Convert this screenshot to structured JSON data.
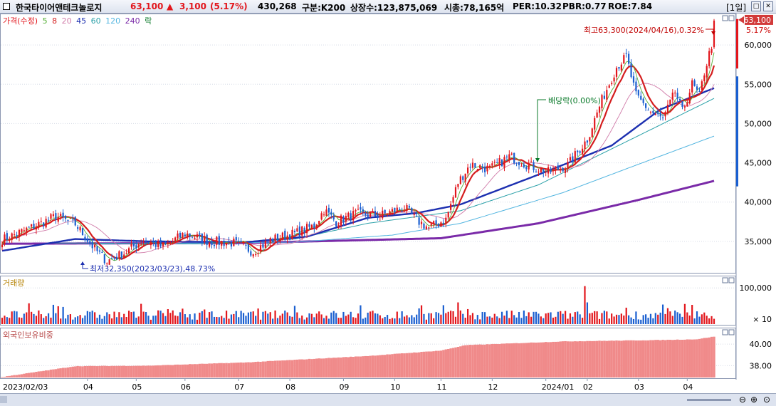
{
  "header": {
    "stock_name": "한국타이어앤테크놀로지",
    "price": "63,100",
    "change_arrow": "▲",
    "change": "3,100",
    "change_pct": "(5.17%)",
    "volume": "430,268",
    "market": "구분:K200",
    "shares": "상장수:123,875,069",
    "market_cap": "시총:78,165억",
    "per": "PER:10.32",
    "pbr": "PBR:0.77",
    "roe": "ROE:7.84",
    "period": "[1일]"
  },
  "legend": {
    "price_label": "가격(수정)",
    "ma5": "5",
    "ma8": "8",
    "ma20": "20",
    "ma45": "45",
    "ma60": "60",
    "ma120": "120",
    "ma240": "240",
    "ex_label": "락"
  },
  "colors": {
    "up": "#e2161c",
    "down": "#1a5fd0",
    "ma5": "#55b036",
    "ma8": "#d41e1e",
    "ma20": "#d07aa8",
    "ma45": "#1c2fb0",
    "ma60": "#2aa0a8",
    "ma120": "#52b5e0",
    "ma240": "#7a2aa8",
    "foreign": "#f08a8a"
  },
  "annotations": {
    "high": "최고63,300(2024/04/16),0.32%",
    "low": "최저32,350(2023/03/23),48.73%",
    "dividend": "배당락(0.00%)",
    "last_price": "63,100",
    "last_pct": "5.17%"
  },
  "volume_panel": {
    "label": "거래량",
    "ticks": [
      "100,000",
      "× 10"
    ]
  },
  "foreign_panel": {
    "label": "외국인보유비중",
    "ticks": [
      "40.00",
      "38.00"
    ]
  },
  "chart_data": {
    "type": "candlestick",
    "price_ylim": [
      31000,
      64000
    ],
    "price_ticks": [
      "60,000",
      "55,000",
      "50,000",
      "45,000",
      "40,000",
      "35,000"
    ],
    "x_labels": [
      "2023/02/03",
      "04",
      "05",
      "06",
      "07",
      "08",
      "09",
      "10",
      "11",
      "12",
      "2024/01",
      "02",
      "03",
      "04"
    ],
    "price_path": [
      [
        0,
        35200
      ],
      [
        10,
        36500
      ],
      [
        22,
        38200
      ],
      [
        30,
        37200
      ],
      [
        38,
        34000
      ],
      [
        43,
        32500
      ],
      [
        50,
        33500
      ],
      [
        58,
        35200
      ],
      [
        66,
        34300
      ],
      [
        75,
        36000
      ],
      [
        85,
        35000
      ],
      [
        95,
        34800
      ],
      [
        103,
        33700
      ],
      [
        110,
        35200
      ],
      [
        120,
        36000
      ],
      [
        128,
        37000
      ],
      [
        132,
        39000
      ],
      [
        137,
        37500
      ],
      [
        145,
        38500
      ],
      [
        155,
        38300
      ],
      [
        165,
        39300
      ],
      [
        170,
        37700
      ],
      [
        175,
        36700
      ],
      [
        182,
        37800
      ],
      [
        187,
        42500
      ],
      [
        192,
        44800
      ],
      [
        200,
        44200
      ],
      [
        208,
        45800
      ],
      [
        216,
        44700
      ],
      [
        224,
        43800
      ],
      [
        232,
        44700
      ],
      [
        240,
        48000
      ],
      [
        246,
        53000
      ],
      [
        252,
        57200
      ],
      [
        256,
        58500
      ],
      [
        260,
        53500
      ],
      [
        266,
        51500
      ],
      [
        271,
        50500
      ],
      [
        276,
        54000
      ],
      [
        279,
        51500
      ],
      [
        283,
        55000
      ],
      [
        286,
        53500
      ],
      [
        288,
        56500
      ],
      [
        291,
        60000
      ],
      [
        292,
        63100
      ]
    ],
    "ma_series": {
      "ma45": [
        [
          0,
          33800
        ],
        [
          30,
          35300
        ],
        [
          60,
          35000
        ],
        [
          100,
          34900
        ],
        [
          125,
          35600
        ],
        [
          150,
          38000
        ],
        [
          170,
          38600
        ],
        [
          188,
          39700
        ],
        [
          220,
          43500
        ],
        [
          250,
          47200
        ],
        [
          270,
          51800
        ],
        [
          292,
          54500
        ]
      ],
      "ma60": [
        [
          20,
          34800
        ],
        [
          80,
          34700
        ],
        [
          120,
          35300
        ],
        [
          150,
          37300
        ],
        [
          188,
          38900
        ],
        [
          220,
          42200
        ],
        [
          260,
          48300
        ],
        [
          292,
          53200
        ]
      ],
      "ma120": [
        [
          40,
          34700
        ],
        [
          120,
          34900
        ],
        [
          160,
          35800
        ],
        [
          188,
          37300
        ],
        [
          230,
          41200
        ],
        [
          260,
          44700
        ],
        [
          292,
          48400
        ]
      ],
      "ma240": [
        [
          0,
          34700
        ],
        [
          100,
          34800
        ],
        [
          180,
          35400
        ],
        [
          220,
          37300
        ],
        [
          260,
          40200
        ],
        [
          292,
          42700
        ]
      ]
    },
    "volume_ylim": [
      0,
      130000
    ],
    "foreign_ylim": [
      36900,
      40800
    ],
    "foreign_path": [
      [
        0,
        36950
      ],
      [
        30,
        37950
      ],
      [
        60,
        38000
      ],
      [
        100,
        38300
      ],
      [
        150,
        38900
      ],
      [
        180,
        39400
      ],
      [
        190,
        39900
      ],
      [
        230,
        40250
      ],
      [
        270,
        40380
      ],
      [
        285,
        40450
      ],
      [
        292,
        40700
      ]
    ]
  }
}
